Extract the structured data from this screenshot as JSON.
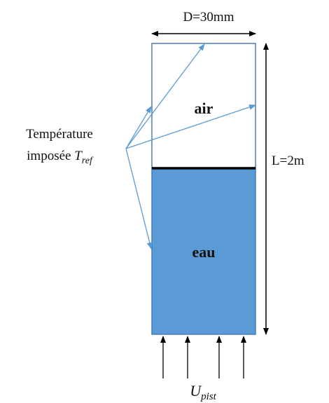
{
  "diameter_label": "D=30mm",
  "length_label": "L=2m",
  "zones": {
    "top": "air",
    "bottom": "eau"
  },
  "temperature_label": {
    "line1": "Température",
    "line2": "imposée",
    "symbol": "T",
    "subscript": "ref"
  },
  "velocity_label": {
    "symbol": "U",
    "subscript": "pist"
  }
}
